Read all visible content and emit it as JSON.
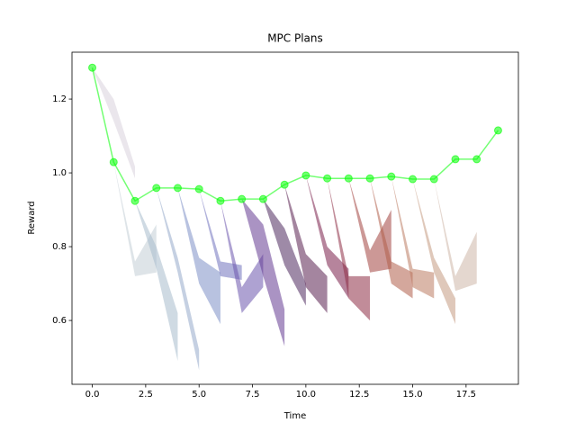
{
  "chart_data": {
    "type": "line",
    "title": "MPC Plans",
    "x_label": "Time",
    "y_label": "Reward",
    "xlim": [
      -0.95,
      19.95
    ],
    "ylim": [
      0.427,
      1.327
    ],
    "xticks": [
      {
        "value": 0,
        "label": "0.0"
      },
      2.5,
      {
        "value": 5,
        "label": "5.0"
      },
      7.5,
      {
        "value": 10,
        "label": "10.0"
      },
      12.5,
      {
        "value": 15,
        "label": "15.0"
      },
      17.5
    ],
    "yticks": [
      0.6,
      0.8,
      {
        "value": 1.0,
        "label": "1.0"
      },
      1.2
    ],
    "series": [
      {
        "color": "#00ff00",
        "x": [
          0,
          1,
          2,
          3,
          4,
          5,
          6,
          7,
          8,
          9,
          10,
          11,
          12,
          13,
          14,
          15,
          16,
          17,
          18,
          19
        ],
        "values": [
          1.285,
          1.029,
          0.924,
          0.959,
          0.959,
          0.956,
          0.924,
          0.929,
          0.929,
          0.968,
          0.993,
          0.985,
          0.985,
          0.985,
          0.99,
          0.983,
          0.983,
          1.037,
          1.037,
          1.115
        ]
      }
    ],
    "plans": [
      {
        "color": "#d9d1dd",
        "x": [
          0,
          1,
          2
        ],
        "lower": [
          1.285,
          1.14,
          0.985
        ],
        "upper": [
          1.285,
          1.2,
          1.017
        ]
      },
      {
        "color": "#c3cdd6",
        "x": [
          1,
          2,
          3
        ],
        "lower": [
          1.029,
          0.72,
          0.73
        ],
        "upper": [
          1.029,
          0.76,
          0.86
        ]
      },
      {
        "color": "#a7bccc",
        "x": [
          2,
          3,
          4
        ],
        "lower": [
          0.924,
          0.74,
          0.49
        ],
        "upper": [
          0.924,
          0.8,
          0.62
        ]
      },
      {
        "color": "#96aacb",
        "x": [
          3,
          4,
          5
        ],
        "lower": [
          0.959,
          0.73,
          0.465
        ],
        "upper": [
          0.959,
          0.77,
          0.52
        ]
      },
      {
        "color": "#7d8fc6",
        "x": [
          4,
          5,
          6
        ],
        "lower": [
          0.959,
          0.7,
          0.59
        ],
        "upper": [
          0.959,
          0.77,
          0.73
        ]
      },
      {
        "color": "#7172bd",
        "x": [
          5,
          6,
          7
        ],
        "lower": [
          0.956,
          0.72,
          0.71
        ],
        "upper": [
          0.956,
          0.76,
          0.75
        ]
      },
      {
        "color": "#6c55ad",
        "x": [
          6,
          7,
          8
        ],
        "lower": [
          0.924,
          0.62,
          0.69
        ],
        "upper": [
          0.924,
          0.69,
          0.78
        ]
      },
      {
        "color": "#643a91",
        "x": [
          7,
          8,
          9
        ],
        "lower": [
          0.929,
          0.72,
          0.53
        ],
        "upper": [
          0.929,
          0.86,
          0.63
        ]
      },
      {
        "color": "#4e2a5e",
        "x": [
          8,
          9,
          10
        ],
        "lower": [
          0.929,
          0.75,
          0.64
        ],
        "upper": [
          0.929,
          0.85,
          0.7
        ]
      },
      {
        "color": "#5a2150",
        "x": [
          9,
          10,
          11
        ],
        "lower": [
          0.968,
          0.69,
          0.62
        ],
        "upper": [
          0.968,
          0.78,
          0.72
        ]
      },
      {
        "color": "#7a1f4a",
        "x": [
          10,
          11,
          12
        ],
        "lower": [
          0.993,
          0.75,
          0.66
        ],
        "upper": [
          0.993,
          0.8,
          0.74
        ]
      },
      {
        "color": "#8e2d45",
        "x": [
          11,
          12,
          13
        ],
        "lower": [
          0.985,
          0.66,
          0.6
        ],
        "upper": [
          0.985,
          0.72,
          0.72
        ]
      },
      {
        "color": "#a3443f",
        "x": [
          12,
          13,
          14
        ],
        "lower": [
          0.985,
          0.73,
          0.74
        ],
        "upper": [
          0.985,
          0.79,
          0.9
        ]
      },
      {
        "color": "#b05f4a",
        "x": [
          13,
          14,
          15
        ],
        "lower": [
          0.985,
          0.7,
          0.66
        ],
        "upper": [
          0.985,
          0.76,
          0.73
        ]
      },
      {
        "color": "#bb7b62",
        "x": [
          14,
          15,
          16
        ],
        "lower": [
          0.99,
          0.69,
          0.66
        ],
        "upper": [
          0.99,
          0.74,
          0.73
        ]
      },
      {
        "color": "#c49a82",
        "x": [
          15,
          16,
          17
        ],
        "lower": [
          0.983,
          0.73,
          0.59
        ],
        "upper": [
          0.983,
          0.77,
          0.66
        ]
      },
      {
        "color": "#cdb6a8",
        "x": [
          16,
          17,
          18
        ],
        "lower": [
          0.983,
          0.68,
          0.7
        ],
        "upper": [
          0.983,
          0.72,
          0.84
        ]
      }
    ]
  }
}
